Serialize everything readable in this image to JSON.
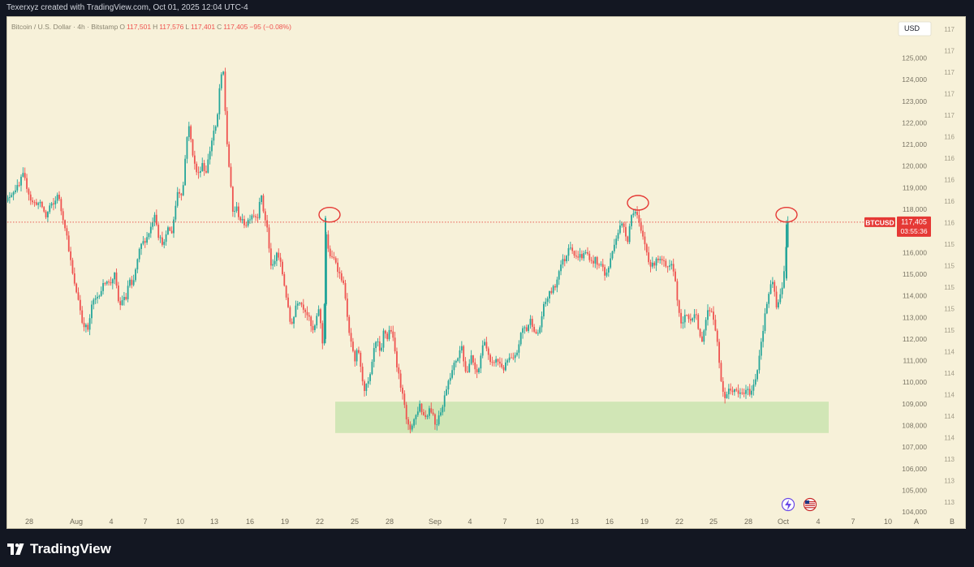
{
  "header": {
    "credit": "Texerxyz created with TradingView.com, Oct 01, 2025 12:04 UTC-4"
  },
  "legend": {
    "symbol": "Bitcoin / U.S. Dollar · 4h · Bitstamp",
    "open_label": "O",
    "open": "117,501",
    "high_label": "H",
    "high": "117,576",
    "low_label": "L",
    "low": "117,401",
    "close_label": "C",
    "close": "117,405",
    "change": "−95 (−0.08%)"
  },
  "price_scale": {
    "currency": "USD"
  },
  "last_price": {
    "symbol": "BTCUSD",
    "price": "117,405",
    "countdown": "03:55:36"
  },
  "footer": {
    "brand": "TradingView"
  },
  "corner_buttons": {
    "auto": "A",
    "log": "B"
  },
  "colors": {
    "background": "#f7f1d9",
    "up": "#26a69a",
    "down": "#ef5350",
    "zone": "#cfe5b4",
    "marker": "#e53935",
    "last_price_line": "#e53935"
  },
  "chart_data": {
    "type": "candlestick",
    "symbol": "BTCUSD",
    "timeframe": "4h",
    "exchange": "Bitstamp",
    "ylim": [
      103500,
      126800
    ],
    "y_ticks": [
      "125,000",
      "124,000",
      "123,000",
      "122,000",
      "121,000",
      "120,000",
      "119,000",
      "118,000",
      "117,000",
      "116,000",
      "115,000",
      "114,000",
      "113,000",
      "112,000",
      "111,000",
      "110,000",
      "109,000",
      "108,000",
      "107,000",
      "106,000",
      "105,000",
      "104,000"
    ],
    "x_ticks": [
      "28",
      "Aug",
      "4",
      "7",
      "10",
      "13",
      "16",
      "19",
      "22",
      "25",
      "28",
      "Sep",
      "4",
      "7",
      "10",
      "13",
      "16",
      "19",
      "22",
      "25",
      "28",
      "Oct",
      "4",
      "7",
      "10"
    ],
    "price_path": [
      [
        0,
        117750
      ],
      [
        6,
        118300
      ],
      [
        12,
        118700
      ],
      [
        18,
        118950
      ],
      [
        24,
        119100
      ],
      [
        26,
        119700
      ],
      [
        30,
        119300
      ],
      [
        38,
        118300
      ],
      [
        44,
        118300
      ],
      [
        50,
        118200
      ],
      [
        56,
        117600
      ],
      [
        60,
        118150
      ],
      [
        66,
        118200
      ],
      [
        70,
        118800
      ],
      [
        74,
        118000
      ],
      [
        80,
        117100
      ],
      [
        84,
        116100
      ],
      [
        90,
        114600
      ],
      [
        96,
        113800
      ],
      [
        100,
        112800
      ],
      [
        104,
        112600
      ],
      [
        108,
        112400
      ],
      [
        112,
        113600
      ],
      [
        118,
        113900
      ],
      [
        124,
        114300
      ],
      [
        130,
        114800
      ],
      [
        134,
        114500
      ],
      [
        140,
        115000
      ],
      [
        144,
        114000
      ],
      [
        146,
        113400
      ],
      [
        150,
        113900
      ],
      [
        154,
        113800
      ],
      [
        158,
        114800
      ],
      [
        162,
        114300
      ],
      [
        166,
        115200
      ],
      [
        172,
        116300
      ],
      [
        176,
        116500
      ],
      [
        180,
        116700
      ],
      [
        185,
        117200
      ],
      [
        190,
        117900
      ],
      [
        194,
        116800
      ],
      [
        198,
        116500
      ],
      [
        202,
        116400
      ],
      [
        206,
        117200
      ],
      [
        210,
        116800
      ],
      [
        214,
        117800
      ],
      [
        218,
        118900
      ],
      [
        222,
        118700
      ],
      [
        226,
        119300
      ],
      [
        228,
        121200
      ],
      [
        232,
        121800
      ],
      [
        236,
        120700
      ],
      [
        240,
        119800
      ],
      [
        244,
        119600
      ],
      [
        248,
        120200
      ],
      [
        252,
        119600
      ],
      [
        256,
        120400
      ],
      [
        262,
        121600
      ],
      [
        266,
        121800
      ],
      [
        270,
        123900
      ],
      [
        274,
        124400
      ],
      [
        278,
        121400
      ],
      [
        282,
        119600
      ],
      [
        286,
        117800
      ],
      [
        290,
        118100
      ],
      [
        294,
        117600
      ],
      [
        298,
        117400
      ],
      [
        302,
        117300
      ],
      [
        306,
        117600
      ],
      [
        310,
        117800
      ],
      [
        316,
        117600
      ],
      [
        320,
        118800
      ],
      [
        324,
        117800
      ],
      [
        328,
        117200
      ],
      [
        332,
        115500
      ],
      [
        336,
        115300
      ],
      [
        340,
        116000
      ],
      [
        344,
        115600
      ],
      [
        348,
        114800
      ],
      [
        352,
        113900
      ],
      [
        356,
        112800
      ],
      [
        360,
        112800
      ],
      [
        364,
        113700
      ],
      [
        368,
        113800
      ],
      [
        372,
        113500
      ],
      [
        376,
        113300
      ],
      [
        380,
        112900
      ],
      [
        384,
        112300
      ],
      [
        388,
        112700
      ],
      [
        392,
        113500
      ],
      [
        396,
        111800
      ],
      [
        398,
        111900
      ],
      [
        400,
        117400
      ],
      [
        402,
        116300
      ],
      [
        404,
        116000
      ],
      [
        408,
        115700
      ],
      [
        412,
        115700
      ],
      [
        416,
        115100
      ],
      [
        420,
        114800
      ],
      [
        424,
        114200
      ],
      [
        428,
        112400
      ],
      [
        432,
        111800
      ],
      [
        436,
        110800
      ],
      [
        440,
        111700
      ],
      [
        444,
        110400
      ],
      [
        448,
        109700
      ],
      [
        452,
        109900
      ],
      [
        456,
        110400
      ],
      [
        460,
        111600
      ],
      [
        464,
        111900
      ],
      [
        468,
        111100
      ],
      [
        472,
        112500
      ],
      [
        476,
        112000
      ],
      [
        480,
        112600
      ],
      [
        484,
        111800
      ],
      [
        488,
        110800
      ],
      [
        492,
        109900
      ],
      [
        496,
        109500
      ],
      [
        500,
        108100
      ],
      [
        504,
        107800
      ],
      [
        508,
        108200
      ],
      [
        512,
        108500
      ],
      [
        516,
        109000
      ],
      [
        520,
        108500
      ],
      [
        524,
        108400
      ],
      [
        528,
        108800
      ],
      [
        532,
        108600
      ],
      [
        536,
        107900
      ],
      [
        540,
        108600
      ],
      [
        544,
        108800
      ],
      [
        548,
        109600
      ],
      [
        552,
        110200
      ],
      [
        556,
        110500
      ],
      [
        560,
        111000
      ],
      [
        564,
        111200
      ],
      [
        568,
        111800
      ],
      [
        572,
        110500
      ],
      [
        576,
        110500
      ],
      [
        580,
        111300
      ],
      [
        584,
        110500
      ],
      [
        588,
        110400
      ],
      [
        592,
        111400
      ],
      [
        596,
        112000
      ],
      [
        600,
        111300
      ],
      [
        604,
        110700
      ],
      [
        608,
        111000
      ],
      [
        612,
        111000
      ],
      [
        616,
        110800
      ],
      [
        620,
        110600
      ],
      [
        624,
        111000
      ],
      [
        628,
        111100
      ],
      [
        632,
        111000
      ],
      [
        636,
        111400
      ],
      [
        640,
        112100
      ],
      [
        644,
        112600
      ],
      [
        648,
        112400
      ],
      [
        652,
        112900
      ],
      [
        656,
        112600
      ],
      [
        660,
        112100
      ],
      [
        664,
        112500
      ],
      [
        668,
        113400
      ],
      [
        672,
        113800
      ],
      [
        676,
        114100
      ],
      [
        680,
        114300
      ],
      [
        684,
        114500
      ],
      [
        688,
        115300
      ],
      [
        692,
        115600
      ],
      [
        696,
        115700
      ],
      [
        700,
        116400
      ],
      [
        704,
        116200
      ],
      [
        708,
        115700
      ],
      [
        712,
        115900
      ],
      [
        716,
        115800
      ],
      [
        720,
        116000
      ],
      [
        724,
        115900
      ],
      [
        728,
        115500
      ],
      [
        732,
        115700
      ],
      [
        736,
        115300
      ],
      [
        740,
        115600
      ],
      [
        744,
        114900
      ],
      [
        748,
        115200
      ],
      [
        752,
        115800
      ],
      [
        756,
        116500
      ],
      [
        760,
        116900
      ],
      [
        764,
        117300
      ],
      [
        768,
        117200
      ],
      [
        772,
        116500
      ],
      [
        776,
        117600
      ],
      [
        780,
        118000
      ],
      [
        784,
        117700
      ],
      [
        788,
        117000
      ],
      [
        792,
        116600
      ],
      [
        796,
        116000
      ],
      [
        800,
        115400
      ],
      [
        804,
        115400
      ],
      [
        808,
        115800
      ],
      [
        812,
        115600
      ],
      [
        816,
        115600
      ],
      [
        820,
        115200
      ],
      [
        824,
        115300
      ],
      [
        828,
        115400
      ],
      [
        832,
        114400
      ],
      [
        836,
        113000
      ],
      [
        840,
        112600
      ],
      [
        844,
        113200
      ],
      [
        848,
        112900
      ],
      [
        852,
        113000
      ],
      [
        856,
        113400
      ],
      [
        860,
        112100
      ],
      [
        864,
        112000
      ],
      [
        868,
        112800
      ],
      [
        872,
        113400
      ],
      [
        876,
        113300
      ],
      [
        880,
        112600
      ],
      [
        884,
        111400
      ],
      [
        888,
        109700
      ],
      [
        892,
        109300
      ],
      [
        896,
        109600
      ],
      [
        900,
        109600
      ],
      [
        904,
        109700
      ],
      [
        908,
        109400
      ],
      [
        912,
        109500
      ],
      [
        916,
        109500
      ],
      [
        920,
        109600
      ],
      [
        924,
        109500
      ],
      [
        928,
        109900
      ],
      [
        932,
        110600
      ],
      [
        936,
        111700
      ],
      [
        940,
        112700
      ],
      [
        944,
        113700
      ],
      [
        948,
        114400
      ],
      [
        952,
        114600
      ],
      [
        956,
        113300
      ],
      [
        960,
        114000
      ],
      [
        964,
        114700
      ],
      [
        968,
        116600
      ],
      [
        970,
        117500
      ],
      [
        972,
        117405
      ]
    ],
    "annotations": [
      {
        "type": "zone",
        "from_x": 412,
        "to_x": 1020,
        "y_top": 109100,
        "y_bottom": 107650,
        "label": ""
      },
      {
        "type": "ellipse",
        "x": 405,
        "y": 117750
      },
      {
        "type": "ellipse",
        "x": 785,
        "y": 118300
      },
      {
        "type": "ellipse",
        "x": 968,
        "y": 117750
      }
    ],
    "last_price": 117405,
    "grid": false,
    "legend_position": "top-left"
  }
}
